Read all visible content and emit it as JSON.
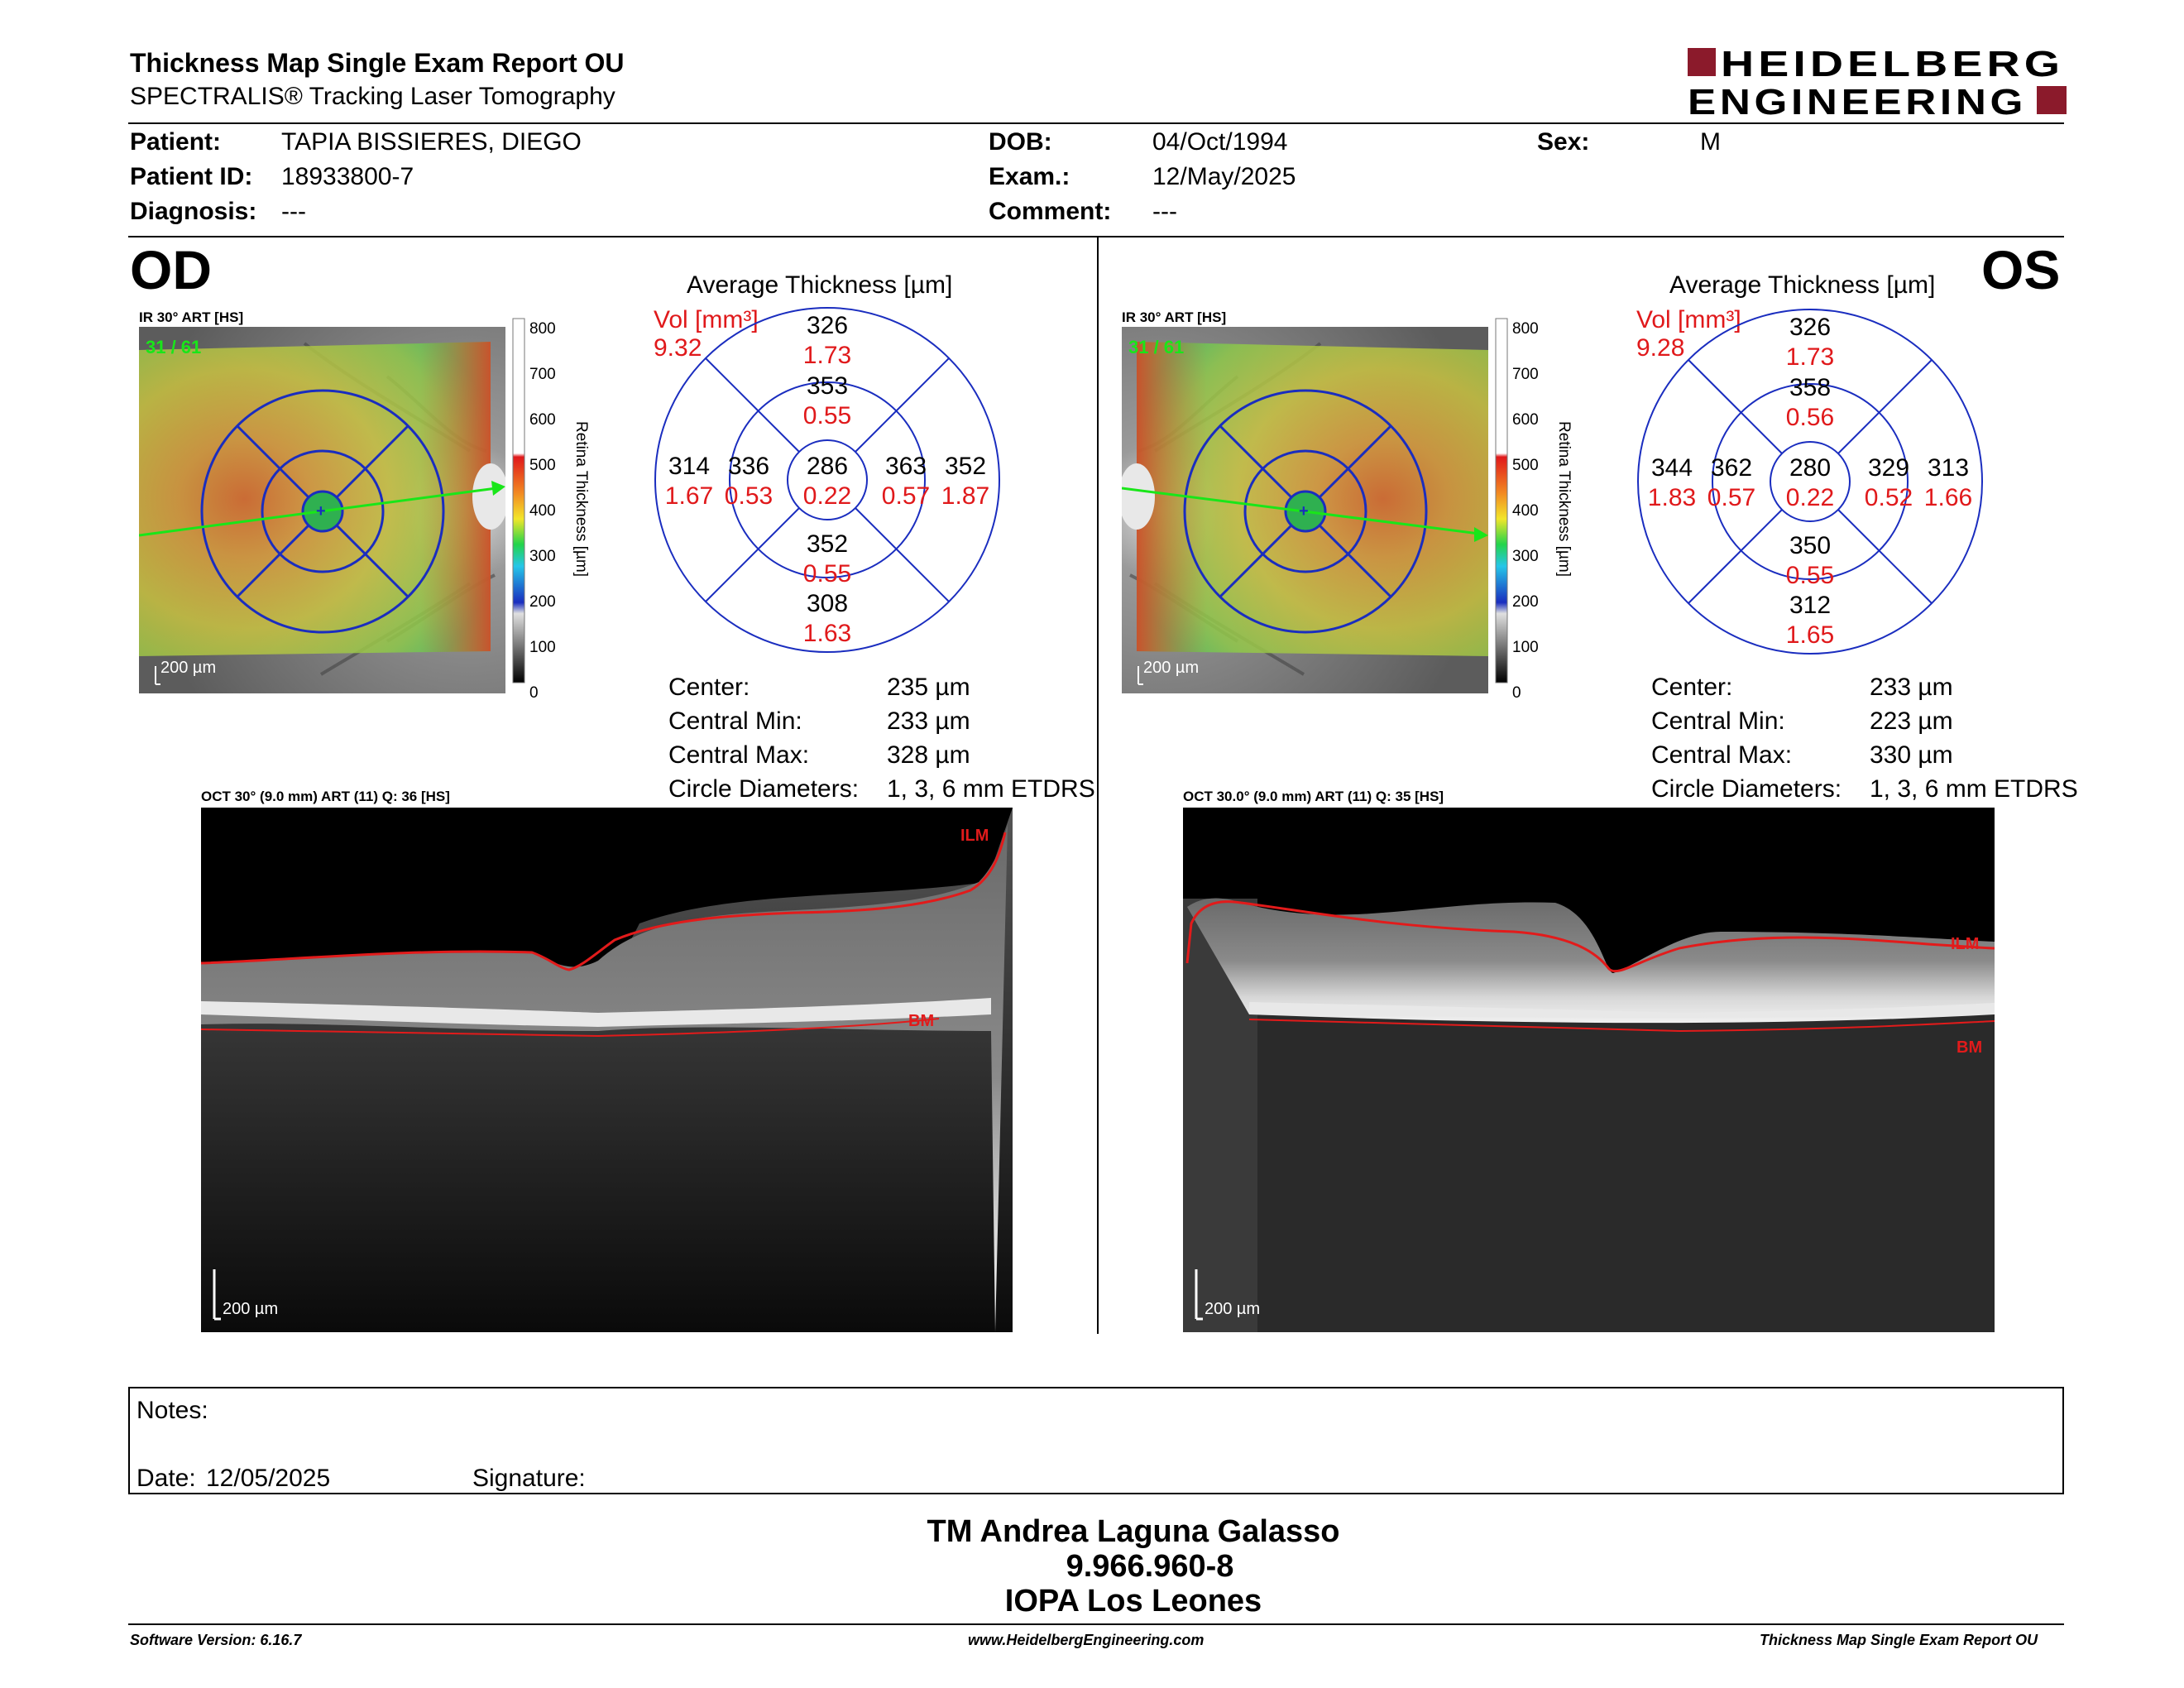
{
  "header": {
    "title": "Thickness Map Single Exam Report OU",
    "subtitle": "SPECTRALIS® Tracking Laser Tomography",
    "logo_line1": "HEIDELBERG",
    "logo_line2": "ENGINEERING"
  },
  "patient": {
    "patient_label": "Patient:",
    "patient_value": "TAPIA BISSIERES, DIEGO",
    "id_label": "Patient ID:",
    "id_value": "18933800-7",
    "diagnosis_label": "Diagnosis:",
    "diagnosis_value": "---",
    "dob_label": "DOB:",
    "dob_value": "04/Oct/1994",
    "exam_label": "Exam.:",
    "exam_value": "12/May/2025",
    "comment_label": "Comment:",
    "comment_value": "---",
    "sex_label": "Sex:",
    "sex_value": "M"
  },
  "od": {
    "eye": "OD",
    "ir_title": "IR 30° ART [HS]",
    "ir_overlay": "31 / 61",
    "scale_label": "200 µm",
    "colorbar_ticks": [
      "800",
      "700",
      "600",
      "500",
      "400",
      "300",
      "200",
      "100",
      "0"
    ],
    "colorbar_title": "Retina Thickness [µm]",
    "avg_title": "Average Thickness [µm]",
    "vol_label": "Vol [mm³]",
    "vol_value": "9.32",
    "sectors": {
      "center_t": "286",
      "center_v": "0.22",
      "inner_sup_t": "353",
      "inner_sup_v": "0.55",
      "inner_inf_t": "352",
      "inner_inf_v": "0.55",
      "inner_left_t": "336",
      "inner_left_v": "0.53",
      "inner_right_t": "363",
      "inner_right_v": "0.57",
      "outer_sup_t": "326",
      "outer_sup_v": "1.73",
      "outer_inf_t": "308",
      "outer_inf_v": "1.63",
      "outer_left_t": "314",
      "outer_left_v": "1.67",
      "outer_right_t": "352",
      "outer_right_v": "1.87"
    },
    "stats": {
      "center_label": "Center:",
      "center_value": "235 µm",
      "min_label": "Central Min:",
      "min_value": "233 µm",
      "max_label": "Central Max:",
      "max_value": "328 µm",
      "circ_label": "Circle Diameters:",
      "circ_value": "1, 3, 6 mm ETDRS"
    },
    "oct_title": "OCT 30° (9.0 mm) ART (11) Q: 36 [HS]",
    "ilm": "ILM",
    "bm": "BM",
    "oct_scale": "200 µm"
  },
  "os": {
    "eye": "OS",
    "ir_title": "IR 30° ART [HS]",
    "ir_overlay": "31 / 61",
    "scale_label": "200 µm",
    "colorbar_ticks": [
      "800",
      "700",
      "600",
      "500",
      "400",
      "300",
      "200",
      "100",
      "0"
    ],
    "colorbar_title": "Retina Thickness [µm]",
    "avg_title": "Average Thickness [µm]",
    "vol_label": "Vol [mm³]",
    "vol_value": "9.28",
    "sectors": {
      "center_t": "280",
      "center_v": "0.22",
      "inner_sup_t": "358",
      "inner_sup_v": "0.56",
      "inner_inf_t": "350",
      "inner_inf_v": "0.55",
      "inner_left_t": "362",
      "inner_left_v": "0.57",
      "inner_right_t": "329",
      "inner_right_v": "0.52",
      "outer_sup_t": "326",
      "outer_sup_v": "1.73",
      "outer_inf_t": "312",
      "outer_inf_v": "1.65",
      "outer_left_t": "344",
      "outer_left_v": "1.83",
      "outer_right_t": "313",
      "outer_right_v": "1.66"
    },
    "stats": {
      "center_label": "Center:",
      "center_value": "233 µm",
      "min_label": "Central Min:",
      "min_value": "223 µm",
      "max_label": "Central Max:",
      "max_value": "330 µm",
      "circ_label": "Circle Diameters:",
      "circ_value": "1, 3, 6 mm ETDRS"
    },
    "oct_title": "OCT 30.0° (9.0 mm) ART (11) Q: 35 [HS]",
    "ilm": "ILM",
    "bm": "BM",
    "oct_scale": "200 µm"
  },
  "notes": {
    "notes_label": "Notes:",
    "date_label": "Date:",
    "date_value": "12/05/2025",
    "signature_label": "Signature:"
  },
  "signature_block": {
    "line1": "TM Andrea Laguna Galasso",
    "line2": "9.966.960-8",
    "line3": "IOPA Los Leones"
  },
  "footer": {
    "software": "Software Version: 6.16.7",
    "url": "www.HeidelbergEngineering.com",
    "report": "Thickness Map Single Exam Report OU"
  },
  "colors": {
    "logo_red": "#8b1a2b",
    "etdrs_blue": "#1a2dbf",
    "vol_red": "#e0191b",
    "ilm_red": "#e21b1b",
    "arrow_green": "#19e619"
  }
}
